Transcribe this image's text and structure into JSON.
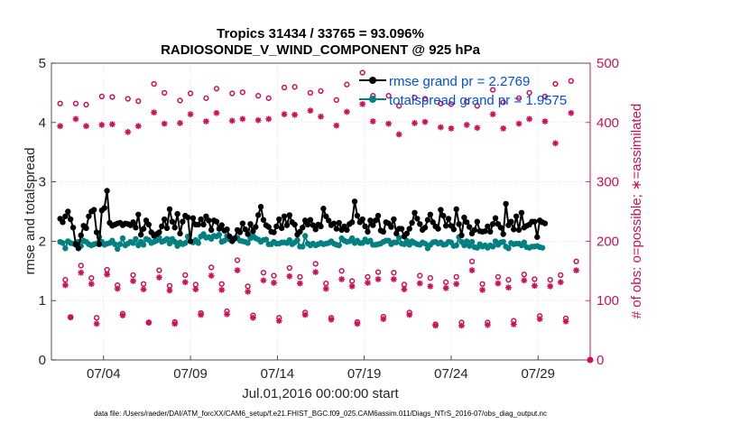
{
  "chart_data": {
    "type": "line",
    "title": "Tropics 31434 / 33765 = 93.096%",
    "subtitle": "RADIOSONDE_V_WIND_COMPONENT @ 925 hPa",
    "xlabel": "Jul.01,2016 00:00:00 start",
    "ylabel": "rmse and totalspread",
    "ylabel_right": "# of obs: o=possible; ∗=assimilated",
    "footer": "data file: /Users/raeder/DAI/ATM_forcXX/CAM6_setup/f.e21.FHIST_BGC.f09_025.CAM6assim.011/Diags_NTrS_2016-07/obs_diag_output.nc",
    "x_range_days": [
      0.5,
      31.5
    ],
    "ylim": [
      0,
      5
    ],
    "ylim_right": [
      0,
      500
    ],
    "xticks": [
      {
        "day": 3.5,
        "label": "07/04"
      },
      {
        "day": 8.5,
        "label": "07/09"
      },
      {
        "day": 13.5,
        "label": "07/14"
      },
      {
        "day": 18.5,
        "label": "07/19"
      },
      {
        "day": 23.5,
        "label": "07/24"
      },
      {
        "day": 28.5,
        "label": "07/29"
      }
    ],
    "yticks": [
      "0",
      "1",
      "2",
      "3",
      "4",
      "5"
    ],
    "yticks_right": [
      "0",
      "100",
      "200",
      "300",
      "400",
      "500"
    ],
    "legend": [
      "rmse grand pr = 2.2769",
      "totalspread grand pr = 1.9575"
    ],
    "legend_position": "top-right",
    "colors": {
      "rmse": "#000000",
      "spread": "#008080",
      "obs": "#cc1155",
      "legend_text": "#0050e0"
    },
    "series": [
      {
        "name": "rmse",
        "axis": "left",
        "values": [
          2.38,
          2.32,
          2.42,
          2.5,
          2.37,
          2.23,
          1.95,
          1.88,
          2.1,
          2.26,
          2.22,
          2.42,
          2.5,
          2.53,
          2.15,
          1.95,
          2.52,
          2.56,
          2.85,
          2.31,
          2.26,
          2.28,
          2.3,
          2.31,
          2.27,
          2.3,
          2.29,
          2.27,
          2.32,
          2.23,
          2.45,
          2.11,
          2.21,
          2.35,
          2.28,
          2.15,
          2.09,
          2.12,
          2.15,
          2.25,
          2.37,
          2.22,
          2.54,
          2.33,
          2.23,
          2.46,
          2.13,
          2.33,
          2.43,
          2.4,
          2.0,
          2.39,
          2.28,
          2.28,
          2.37,
          2.28,
          2.42,
          2.35,
          2.19,
          2.35,
          2.33,
          2.21,
          2.27,
          2.18,
          2.2,
          2.08,
          2.0,
          2.05,
          2.19,
          2.15,
          2.3,
          2.2,
          2.12,
          2.29,
          2.17,
          2.24,
          2.44,
          2.58,
          2.36,
          2.27,
          2.24,
          2.16,
          2.15,
          2.25,
          2.37,
          2.22,
          2.42,
          2.27,
          2.44,
          2.32,
          2.28,
          2.11,
          2.16,
          2.23,
          2.35,
          2.28,
          2.36,
          2.27,
          2.2,
          2.28,
          2.25,
          2.55,
          2.42,
          2.35,
          2.27,
          2.3,
          2.21,
          2.31,
          2.19,
          2.25,
          2.19,
          2.29,
          2.32,
          2.67,
          2.43,
          2.32,
          2.37,
          2.25,
          2.16,
          2.35,
          2.27,
          2.35,
          2.43,
          2.18,
          2.16,
          2.32,
          2.3,
          2.24,
          2.37,
          2.13,
          2.21,
          2.21,
          2.08,
          2.13,
          2.21,
          2.31,
          2.48,
          2.38,
          2.29,
          2.19,
          2.23,
          2.36,
          2.45,
          2.32,
          2.25,
          2.21,
          2.53,
          2.43,
          2.26,
          2.38,
          2.26,
          2.2,
          2.54,
          2.29,
          2.1,
          2.4,
          2.32,
          2.24,
          2.13,
          2.19,
          2.33,
          2.17,
          2.16,
          2.17,
          2.25,
          2.16,
          2.29,
          2.39,
          2.29,
          2.23,
          2.12,
          2.63,
          2.27,
          2.33,
          2.2,
          2.42,
          2.19,
          2.48,
          2.23,
          2.26,
          2.28,
          2.33,
          2.33,
          2.07,
          2.35,
          2.32,
          2.3
        ]
      },
      {
        "name": "totalspread",
        "axis": "left",
        "values": [
          1.99,
          1.97,
          1.88,
          2.0,
          1.97,
          1.96,
          1.94,
          1.99,
          1.92,
          2.01,
          1.99,
          1.95,
          1.93,
          1.95,
          1.96,
          2.07,
          1.99,
          1.94,
          1.96,
          1.97,
          2.01,
          1.95,
          1.87,
          1.95,
          2.05,
          1.93,
          1.96,
          1.99,
          1.97,
          2.04,
          1.93,
          1.99,
          1.94,
          2.04,
          2.02,
          1.97,
          1.99,
          2.01,
          2.06,
          1.99,
          2.01,
          2.04,
          1.96,
          2.04,
          1.99,
          1.92,
          1.98,
          1.95,
          1.97,
          2.08,
          2.0,
          1.98,
          2.02,
          1.97,
          2.08,
          2.12,
          2.06,
          2.07,
          2.04,
          2.09,
          2.08,
          2.11,
          1.99,
          2.01,
          2.09,
          2.03,
          2.03,
          2.04,
          2.06,
          2.01,
          2.0,
          1.99,
          1.97,
          2.05,
          2.09,
          2.05,
          2.03,
          1.99,
          2.02,
          2.03,
          1.95,
          1.95,
          1.99,
          1.96,
          1.96,
          1.98,
          1.98,
          1.97,
          2.02,
          1.95,
          1.98,
          2.02,
          1.91,
          1.91,
          2.09,
          1.96,
          1.93,
          1.96,
          1.93,
          1.95,
          1.97,
          1.95,
          1.96,
          1.97,
          2.0,
          1.96,
          1.94,
          1.93,
          2.05,
          2.01,
          1.99,
          2.0,
          2.05,
          1.97,
          2.01,
          1.97,
          1.97,
          2.03,
          1.99,
          2.01,
          1.94,
          1.94,
          1.95,
          1.96,
          1.99,
          2.01,
          2.01,
          1.95,
          1.98,
          1.98,
          2.06,
          1.96,
          1.95,
          2.01,
          1.94,
          2.0,
          1.97,
          1.95,
          1.94,
          1.98,
          1.96,
          1.88,
          1.94,
          1.98,
          1.99,
          1.96,
          1.98,
          1.94,
          1.95,
          1.99,
          1.98,
          1.92,
          1.93,
          2.07,
          1.99,
          1.93,
          2.0,
          1.92,
          1.99,
          1.9,
          1.89,
          1.95,
          1.91,
          1.93,
          1.89,
          1.93,
          1.91,
          2.0,
          1.94,
          1.98,
          1.99,
          1.91,
          1.88,
          1.97,
          1.95,
          1.96,
          1.96,
          1.93,
          1.98,
          1.9,
          1.89,
          1.91,
          1.91,
          1.92,
          1.9,
          1.89
        ]
      },
      {
        "name": "possible",
        "axis": "right",
        "marker": "o",
        "values": [
          432,
          135,
          72,
          432,
          159,
          430,
          138,
          71,
          444,
          152,
          443,
          126,
          78,
          440,
          143,
          436,
          128,
          63,
          465,
          151,
          450,
          125,
          64,
          437,
          143,
          449,
          127,
          79,
          441,
          156,
          457,
          128,
          82,
          449,
          168,
          451,
          124,
          75,
          445,
          147,
          441,
          142,
          71,
          459,
          155,
          460,
          140,
          80,
          450,
          162,
          453,
          129,
          71,
          438,
          150,
          464,
          133,
          64,
          484,
          140,
          445,
          148,
          73,
          445,
          147,
          428,
          127,
          80,
          442,
          142,
          440,
          138,
          60,
          432,
          131,
          431,
          140,
          63,
          435,
          166,
          428,
          128,
          63,
          455,
          140,
          434,
          135,
          66,
          441,
          144,
          450,
          136,
          74,
          444,
          135,
          465,
          143,
          70,
          470,
          166
        ]
      },
      {
        "name": "assimilated",
        "axis": "right",
        "marker": "*",
        "values": [
          394,
          126,
          72,
          406,
          147,
          394,
          128,
          61,
          396,
          144,
          397,
          120,
          75,
          384,
          133,
          394,
          119,
          63,
          417,
          139,
          398,
          117,
          61,
          399,
          131,
          414,
          119,
          76,
          402,
          142,
          416,
          118,
          77,
          403,
          151,
          406,
          115,
          71,
          404,
          134,
          406,
          130,
          66,
          414,
          141,
          413,
          129,
          76,
          420,
          148,
          410,
          120,
          68,
          395,
          136,
          418,
          124,
          61,
          431,
          130,
          402,
          136,
          69,
          398,
          136,
          380,
          119,
          76,
          399,
          129,
          401,
          124,
          58,
          392,
          121,
          390,
          128,
          58,
          396,
          151,
          391,
          118,
          59,
          414,
          129,
          390,
          122,
          60,
          398,
          134,
          406,
          125,
          69,
          402,
          124,
          365,
          131,
          65,
          416,
          151
        ]
      }
    ]
  }
}
